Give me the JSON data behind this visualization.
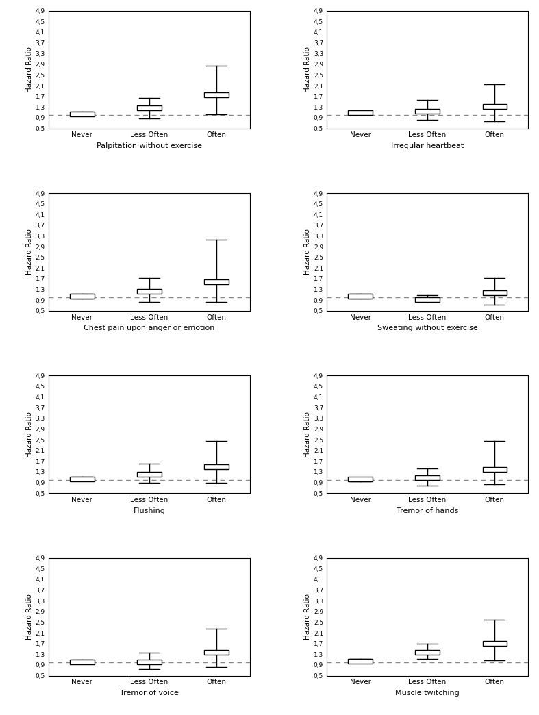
{
  "panels": [
    {
      "title": "Palpitation without exercise",
      "categories": [
        "Never",
        "Less Often",
        "Often"
      ],
      "hr": [
        1.05,
        1.28,
        1.75
      ],
      "ci_low": [
        0.98,
        0.88,
        1.02
      ],
      "ci_high": [
        1.13,
        1.65,
        2.85
      ]
    },
    {
      "title": "Irregular heartbeat",
      "categories": [
        "Never",
        "Less Often",
        "Often"
      ],
      "hr": [
        1.08,
        1.15,
        1.32
      ],
      "ci_low": [
        1.0,
        0.82,
        0.78
      ],
      "ci_high": [
        1.16,
        1.55,
        2.15
      ]
    },
    {
      "title": "Chest pain upon anger or emotion",
      "categories": [
        "Never",
        "Less Often",
        "Often"
      ],
      "hr": [
        1.05,
        1.23,
        1.58
      ],
      "ci_low": [
        0.97,
        0.82,
        0.82
      ],
      "ci_high": [
        1.13,
        1.72,
        3.15
      ]
    },
    {
      "title": "Sweating without exercise",
      "categories": [
        "Never",
        "Less Often",
        "Often"
      ],
      "hr": [
        1.05,
        0.93,
        1.18
      ],
      "ci_low": [
        0.97,
        0.82,
        0.72
      ],
      "ci_high": [
        1.13,
        1.08,
        1.72
      ]
    },
    {
      "title": "Flushing",
      "categories": [
        "Never",
        "Less Often",
        "Often"
      ],
      "hr": [
        1.03,
        1.2,
        1.5
      ],
      "ci_low": [
        0.96,
        0.88,
        0.9
      ],
      "ci_high": [
        1.11,
        1.6,
        2.45
      ]
    },
    {
      "title": "Tremor of hands",
      "categories": [
        "Never",
        "Less Often",
        "Often"
      ],
      "hr": [
        1.02,
        1.08,
        1.4
      ],
      "ci_low": [
        0.95,
        0.78,
        0.85
      ],
      "ci_high": [
        1.1,
        1.42,
        2.45
      ]
    },
    {
      "title": "Tremor of voice",
      "categories": [
        "Never",
        "Less Often",
        "Often"
      ],
      "hr": [
        1.02,
        1.02,
        1.38
      ],
      "ci_low": [
        0.95,
        0.75,
        0.82
      ],
      "ci_high": [
        1.1,
        1.35,
        2.25
      ]
    },
    {
      "title": "Muscle twitching",
      "categories": [
        "Never",
        "Less Often",
        "Often"
      ],
      "hr": [
        1.05,
        1.38,
        1.7
      ],
      "ci_low": [
        0.98,
        1.12,
        1.08
      ],
      "ci_high": [
        1.13,
        1.68,
        2.6
      ]
    }
  ],
  "yticks": [
    0.5,
    0.9,
    1.3,
    1.7,
    2.1,
    2.5,
    2.9,
    3.3,
    3.7,
    4.1,
    4.5,
    4.9
  ],
  "ytick_labels": [
    "0,5",
    "0,9",
    "1,3",
    "1,7",
    "2,1",
    "2,5",
    "2,9",
    "3,3",
    "3,7",
    "4,1",
    "4,5",
    "4,9"
  ],
  "ylim": [
    0.5,
    4.9
  ],
  "dashed_line_y": 1.0,
  "ylabel": "Hazard Ratio",
  "dashed_color": "#888888",
  "background_color": "white"
}
